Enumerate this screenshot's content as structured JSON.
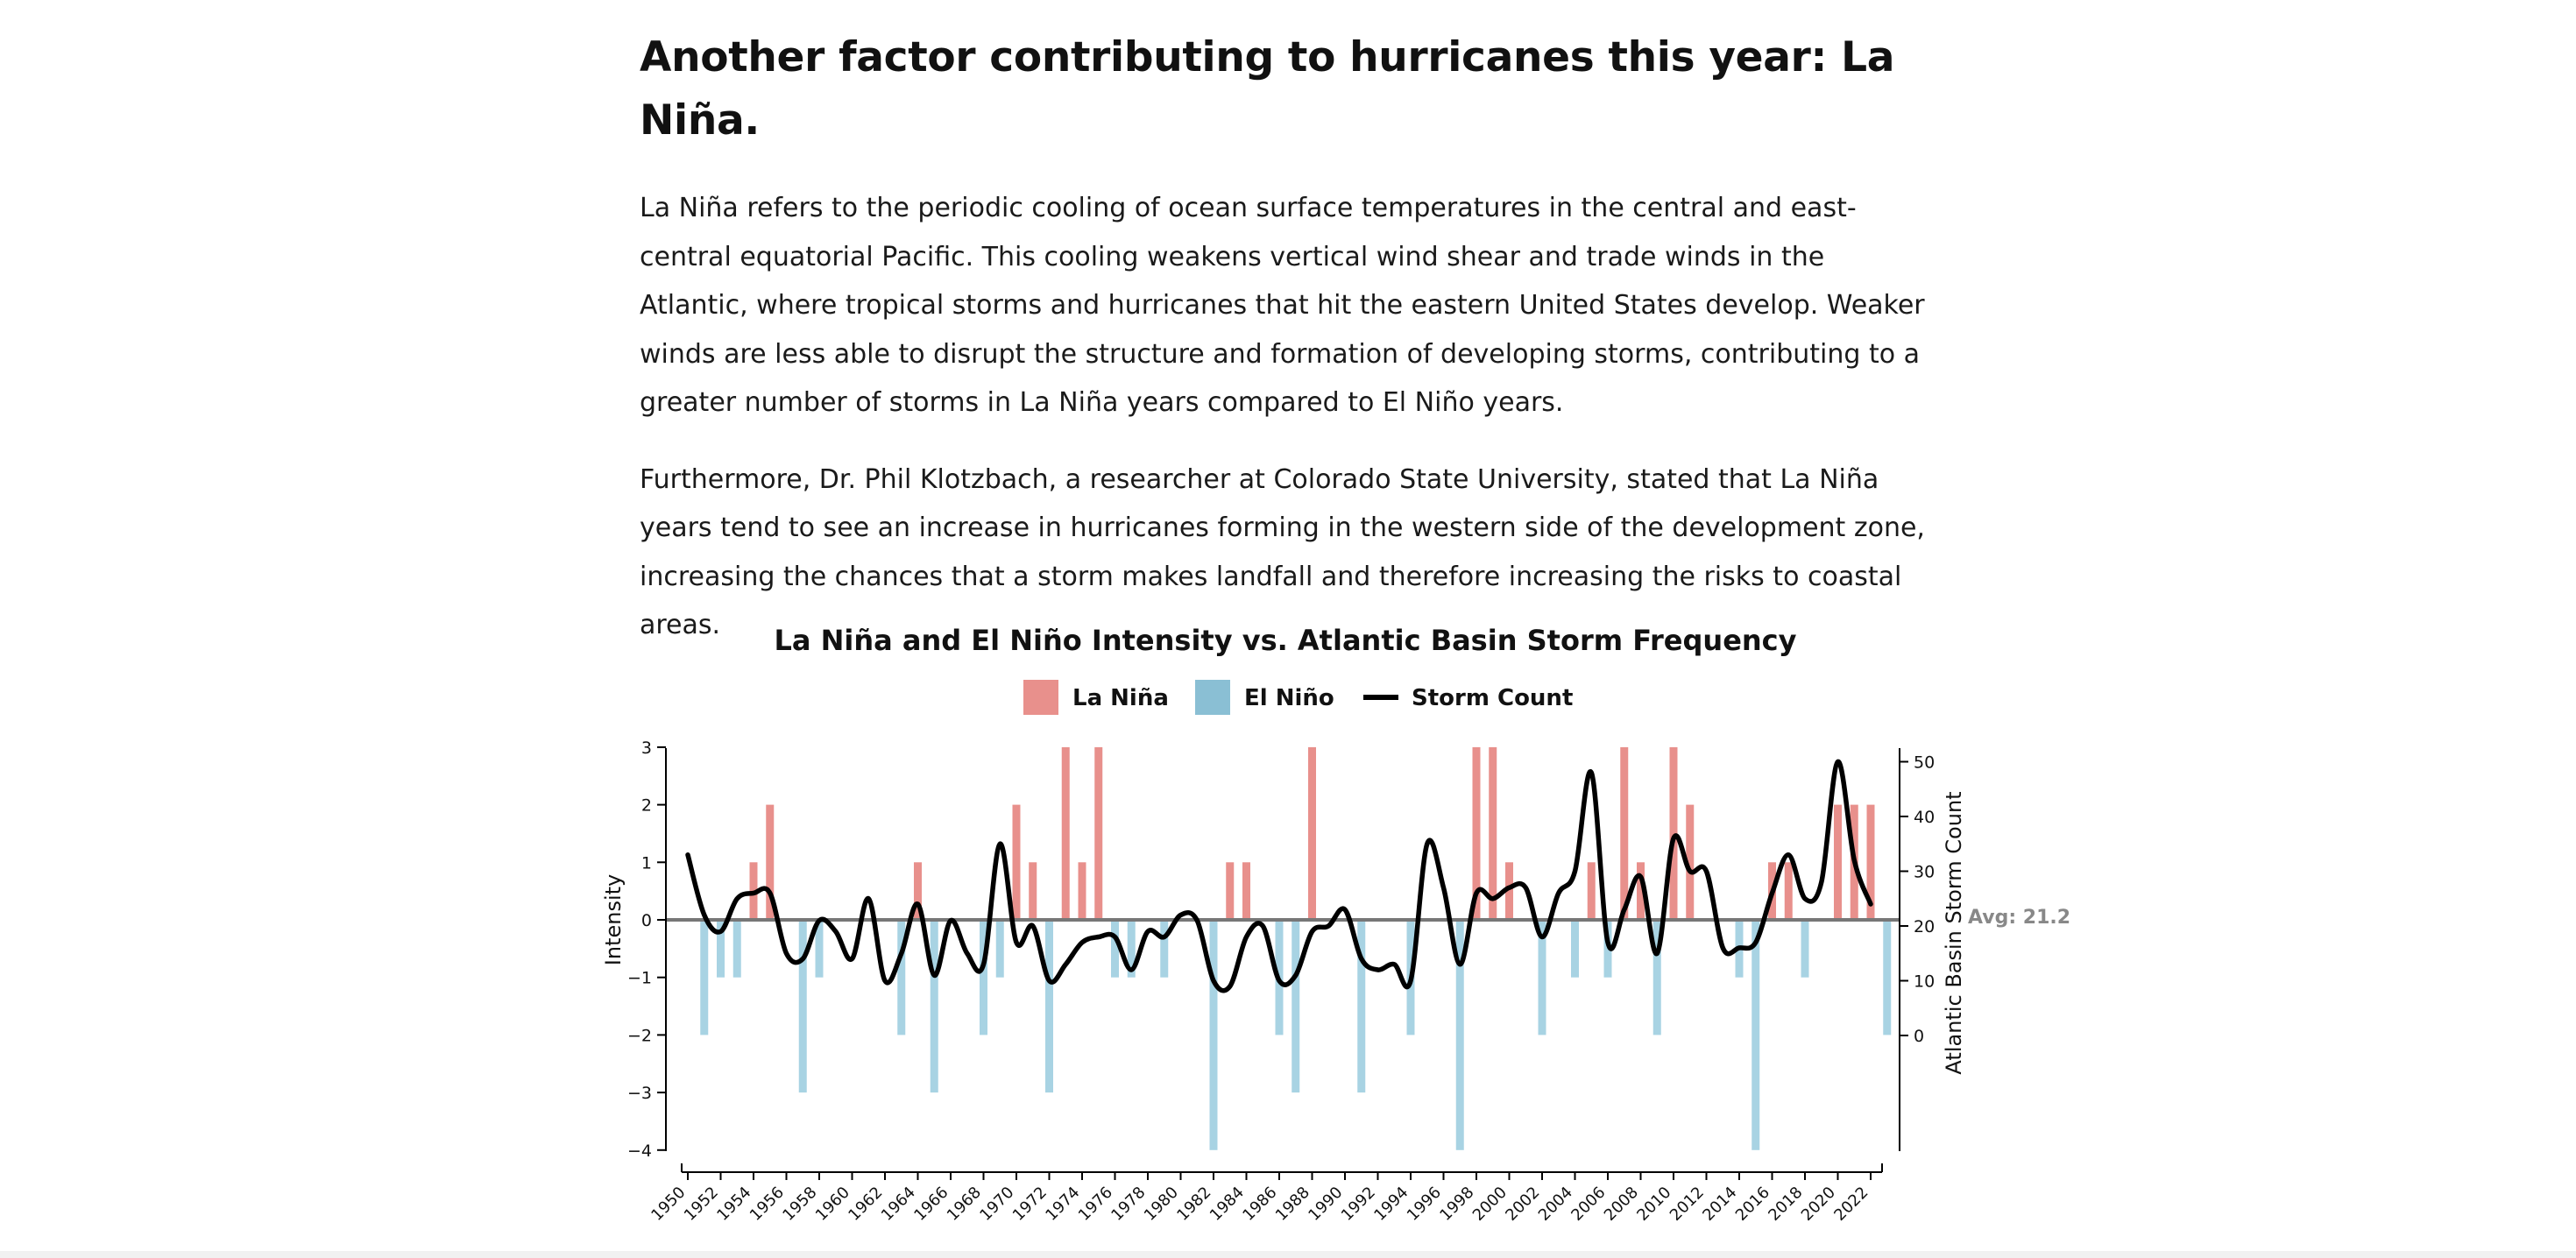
{
  "article": {
    "heading": "Another factor contributing to hurricanes this year: La Niña.",
    "paragraph1": "La Niña refers to the periodic cooling of ocean surface temperatures in the central and east-central equatorial Pacific. This cooling weakens vertical wind shear and trade winds in the Atlantic, where tropical storms and hurricanes that hit the eastern United States develop. Weaker winds are less able to disrupt the structure and formation of developing storms, contributing to a greater number of storms in La Niña years compared to El Niño years.",
    "paragraph2": "Furthermore, Dr. Phil Klotzbach, a researcher at Colorado State University, stated that La Niña years tend to see an increase in hurricanes forming in the western side of the development zone, increasing the chances that a storm makes landfall and therefore increasing the risks to coastal areas."
  },
  "colors": {
    "la_nina": "#e8908c",
    "el_nino": "#a8d3e3",
    "legend_el_nino": "#8abfd4",
    "storm_line": "#000000",
    "avg_label": "#888888"
  },
  "chart_data": {
    "type": "bar",
    "title": "La Niña and El Niño Intensity vs. Atlantic Basin Storm Frequency",
    "legend": [
      {
        "label": "La Niña",
        "symbol": "square"
      },
      {
        "label": "El Niño",
        "symbol": "square"
      },
      {
        "label": "Storm Count",
        "symbol": "line"
      }
    ],
    "legend_position": "top-center",
    "ylabel_left": "Intensity",
    "ylabel_right": "Atlantic Basin Storm Count",
    "ylim_left": [
      -4,
      3
    ],
    "ylim_right": [
      -21,
      52
    ],
    "yticks_left": [
      3,
      2,
      1,
      0,
      -1,
      -2,
      -3,
      -4
    ],
    "yticks_right": [
      50,
      40,
      30,
      20,
      10,
      0
    ],
    "xticks": [
      1950,
      1952,
      1954,
      1956,
      1958,
      1960,
      1962,
      1964,
      1966,
      1968,
      1970,
      1972,
      1974,
      1976,
      1978,
      1980,
      1982,
      1984,
      1986,
      1988,
      1990,
      1992,
      1994,
      1996,
      1998,
      2000,
      2002,
      2004,
      2006,
      2008,
      2010,
      2012,
      2014,
      2016,
      2018,
      2020,
      2022
    ],
    "average_label": "Avg: 21.2",
    "average_value": 21.2,
    "grid": false,
    "series": [
      {
        "name": "La Niña",
        "x": [
          1954,
          1955,
          1964,
          1970,
          1971,
          1973,
          1974,
          1975,
          1983,
          1984,
          1988,
          1998,
          1999,
          2000,
          2005,
          2007,
          2008,
          2010,
          2011,
          2016,
          2017,
          2020,
          2021,
          2022
        ],
        "values": [
          1,
          2,
          1,
          2,
          1,
          3,
          1,
          3,
          1,
          1,
          3,
          3,
          3,
          1,
          1,
          3,
          1,
          3,
          2,
          1,
          1,
          2,
          2,
          2
        ]
      },
      {
        "name": "El Niño",
        "x": [
          1951,
          1952,
          1953,
          1957,
          1958,
          1963,
          1965,
          1968,
          1969,
          1972,
          1976,
          1977,
          1979,
          1982,
          1986,
          1987,
          1991,
          1994,
          1997,
          2002,
          2004,
          2006,
          2009,
          2014,
          2015,
          2018,
          2023
        ],
        "values": [
          -2,
          -1,
          -1,
          -3,
          -1,
          -2,
          -3,
          -2,
          -1,
          -3,
          -1,
          -1,
          -1,
          -4,
          -2,
          -3,
          -3,
          -2,
          -4,
          -2,
          -1,
          -1,
          -2,
          -1,
          -4,
          -1,
          -2
        ]
      },
      {
        "name": "Storm Count",
        "x": [
          1950,
          1951,
          1952,
          1953,
          1954,
          1955,
          1956,
          1957,
          1958,
          1959,
          1960,
          1961,
          1962,
          1963,
          1964,
          1965,
          1966,
          1967,
          1968,
          1969,
          1970,
          1971,
          1972,
          1973,
          1974,
          1975,
          1976,
          1977,
          1978,
          1979,
          1980,
          1981,
          1982,
          1983,
          1984,
          1985,
          1986,
          1987,
          1988,
          1989,
          1990,
          1991,
          1992,
          1993,
          1994,
          1995,
          1996,
          1997,
          1998,
          1999,
          2000,
          2001,
          2002,
          2003,
          2004,
          2005,
          2006,
          2007,
          2008,
          2009,
          2010,
          2011,
          2012,
          2013,
          2014,
          2015,
          2016,
          2017,
          2018,
          2019,
          2020,
          2021,
          2022
        ],
        "values": [
          33,
          22,
          19,
          25,
          26,
          26,
          15,
          14,
          21,
          19,
          14,
          25,
          10,
          15,
          24,
          11,
          21,
          15,
          13,
          35,
          17,
          20,
          10,
          13,
          17,
          18,
          18,
          12,
          19,
          18,
          22,
          21,
          10,
          9,
          18,
          20,
          10,
          11,
          19,
          20,
          23,
          14,
          12,
          13,
          10,
          35,
          27,
          13,
          26,
          25,
          27,
          27,
          18,
          26,
          30,
          48,
          17,
          23,
          29,
          15,
          36,
          30,
          30,
          16,
          16,
          17,
          26,
          33,
          25,
          28,
          50,
          32,
          24
        ]
      }
    ]
  }
}
